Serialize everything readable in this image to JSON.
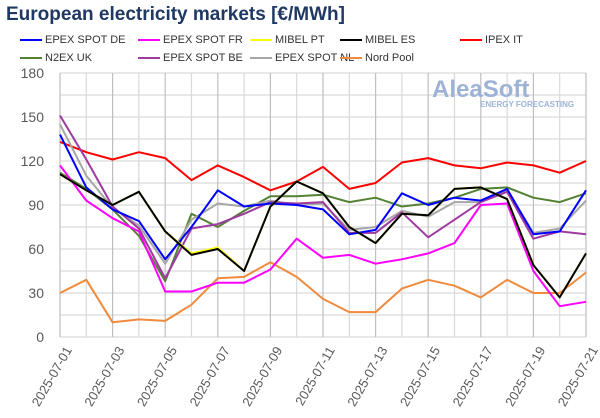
{
  "chart_data": {
    "type": "line",
    "title": "European electricity markets [€/MWh]",
    "ylim": [
      0,
      180
    ],
    "yticks": [
      0,
      30,
      60,
      90,
      120,
      150,
      180
    ],
    "grid": true,
    "legend_position": "top",
    "x": [
      "2025-07-01",
      "2025-07-02",
      "2025-07-03",
      "2025-07-04",
      "2025-07-05",
      "2025-07-06",
      "2025-07-07",
      "2025-07-08",
      "2025-07-09",
      "2025-07-10",
      "2025-07-11",
      "2025-07-12",
      "2025-07-13",
      "2025-07-14",
      "2025-07-15",
      "2025-07-16",
      "2025-07-17",
      "2025-07-18",
      "2025-07-19",
      "2025-07-20",
      "2025-07-21"
    ],
    "xticklabels": [
      "2025-07-01",
      "2025-07-03",
      "2025-07-05",
      "2025-07-07",
      "2025-07-09",
      "2025-07-11",
      "2025-07-13",
      "2025-07-15",
      "2025-07-17",
      "2025-07-19",
      "2025-07-21"
    ],
    "series": [
      {
        "name": "IPEX IT",
        "color": "#ff0000",
        "values": [
          133,
          126,
          121,
          126,
          122,
          107,
          117,
          109,
          100,
          106,
          116,
          101,
          105,
          119,
          122,
          117,
          115,
          119,
          117,
          112,
          120
        ]
      },
      {
        "name": "Nord Pool",
        "color": "#f08a3c",
        "values": [
          30,
          39,
          10,
          12,
          11,
          22,
          40,
          41,
          51,
          41,
          26,
          17,
          17,
          33,
          39,
          35,
          27,
          39,
          30,
          30,
          44
        ]
      },
      {
        "name": "N2EX UK",
        "color": "#548235",
        "values": [
          112,
          101,
          87,
          69,
          38,
          84,
          75,
          86,
          96,
          96,
          97,
          92,
          95,
          89,
          91,
          95,
          101,
          102,
          95,
          92,
          98
        ]
      },
      {
        "name": "EPEX SPOT NL",
        "color": "#a6a6a6",
        "values": [
          145,
          110,
          88,
          76,
          50,
          80,
          91,
          89,
          93,
          90,
          91,
          73,
          75,
          86,
          82,
          92,
          92,
          100,
          71,
          74,
          93
        ]
      },
      {
        "name": "EPEX SPOT BE",
        "color": "#9e3aa0",
        "values": [
          151,
          121,
          89,
          74,
          40,
          74,
          77,
          84,
          92,
          91,
          92,
          71,
          71,
          85,
          68,
          80,
          92,
          99,
          67,
          72,
          70
        ]
      },
      {
        "name": "EPEX SPOT DE",
        "color": "#0000ff",
        "values": [
          138,
          102,
          87,
          79,
          53,
          75,
          100,
          89,
          91,
          90,
          87,
          70,
          73,
          98,
          90,
          95,
          93,
          101,
          70,
          72,
          100
        ]
      },
      {
        "name": "EPEX SPOT FR",
        "color": "#ff00ff",
        "values": [
          117,
          93,
          81,
          72,
          31,
          31,
          37,
          37,
          46,
          67,
          54,
          56,
          50,
          53,
          57,
          64,
          90,
          91,
          45,
          21,
          24
        ]
      },
      {
        "name": "MIBEL PT",
        "color": "#ffff00",
        "values": [
          111,
          100,
          90,
          99,
          72,
          57,
          61,
          45,
          89,
          106,
          98,
          75,
          64,
          84,
          83,
          101,
          102,
          94,
          49,
          27,
          57
        ]
      },
      {
        "name": "MIBEL ES",
        "color": "#000000",
        "values": [
          111,
          100,
          90,
          99,
          72,
          56,
          60,
          45,
          89,
          106,
          98,
          75,
          64,
          84,
          83,
          101,
          102,
          94,
          49,
          27,
          57
        ]
      }
    ]
  },
  "legend": [
    {
      "name": "EPEX SPOT DE",
      "color": "#0000ff"
    },
    {
      "name": "EPEX SPOT FR",
      "color": "#ff00ff"
    },
    {
      "name": "MIBEL PT",
      "color": "#ffff00"
    },
    {
      "name": "MIBEL ES",
      "color": "#000000"
    },
    {
      "name": "IPEX IT",
      "color": "#ff0000"
    },
    {
      "name": "N2EX UK",
      "color": "#548235"
    },
    {
      "name": "EPEX SPOT BE",
      "color": "#9e3aa0"
    },
    {
      "name": "EPEX SPOT NL",
      "color": "#a6a6a6"
    },
    {
      "name": "Nord Pool",
      "color": "#f08a3c"
    }
  ],
  "logo": {
    "name": "AleaSoft",
    "tagline": "ENERGY FORECASTING"
  }
}
